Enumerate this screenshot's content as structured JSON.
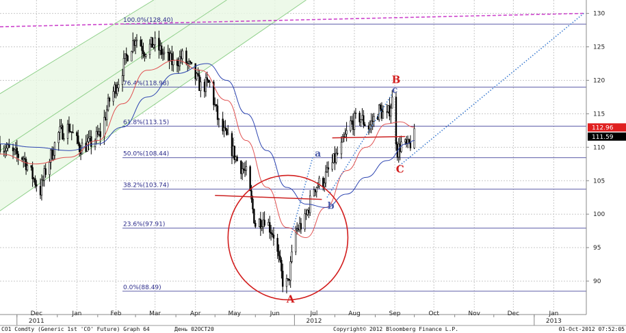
{
  "chart_data": {
    "type": "candlestick",
    "ylim": [
      85,
      132
    ],
    "x_range": [
      "2011-11-18",
      "2013-02-10"
    ],
    "y_ticks": [
      90,
      95,
      100,
      105,
      110,
      115,
      120,
      125,
      130
    ],
    "x_ticks": [
      {
        "date": "2011-12-01",
        "label": "Dec",
        "sub": "2011"
      },
      {
        "date": "2012-01-01",
        "label": "Jan",
        "sub": ""
      },
      {
        "date": "2012-02-01",
        "label": "Feb",
        "sub": ""
      },
      {
        "date": "2012-03-01",
        "label": "Mar",
        "sub": ""
      },
      {
        "date": "2012-04-01",
        "label": "Apr",
        "sub": ""
      },
      {
        "date": "2012-05-01",
        "label": "May",
        "sub": ""
      },
      {
        "date": "2012-06-01",
        "label": "Jun",
        "sub": ""
      },
      {
        "date": "2012-07-01",
        "label": "Jul",
        "sub": "2012"
      },
      {
        "date": "2012-08-01",
        "label": "Aug",
        "sub": ""
      },
      {
        "date": "2012-09-01",
        "label": "Sep",
        "sub": ""
      },
      {
        "date": "2012-10-01",
        "label": "Oct",
        "sub": ""
      },
      {
        "date": "2012-11-01",
        "label": "Nov",
        "sub": ""
      },
      {
        "date": "2012-12-01",
        "label": "Dec",
        "sub": ""
      },
      {
        "date": "2013-01-01",
        "label": "Jan",
        "sub": "2013"
      }
    ],
    "fib_levels": [
      {
        "label": "100.0%(128.40)",
        "value": 128.4
      },
      {
        "label": "76.4%(118.98)",
        "value": 118.98
      },
      {
        "label": "61.8%(113.15)",
        "value": 113.15
      },
      {
        "label": "50.0%(108.44)",
        "value": 108.44
      },
      {
        "label": "38.2%(103.74)",
        "value": 103.74
      },
      {
        "label": "23.6%(97.91)",
        "value": 97.91
      },
      {
        "label": "0.0%(88.49)",
        "value": 88.49
      }
    ],
    "close_path": [
      [
        "2011-11-18",
        110.5
      ],
      [
        "2011-11-28",
        109.0
      ],
      [
        "2011-12-06",
        108.5
      ],
      [
        "2011-12-12",
        106.0
      ],
      [
        "2011-12-19",
        103.5
      ],
      [
        "2011-12-23",
        106.5
      ],
      [
        "2012-01-02",
        112.0
      ],
      [
        "2012-01-10",
        113.0
      ],
      [
        "2012-01-18",
        110.0
      ],
      [
        "2012-01-26",
        110.5
      ],
      [
        "2012-02-03",
        112.0
      ],
      [
        "2012-02-10",
        117.0
      ],
      [
        "2012-02-17",
        120.0
      ],
      [
        "2012-02-24",
        124.0
      ],
      [
        "2012-03-01",
        126.5
      ],
      [
        "2012-03-08",
        124.5
      ],
      [
        "2012-03-15",
        125.5
      ],
      [
        "2012-03-22",
        124.0
      ],
      [
        "2012-03-30",
        122.5
      ],
      [
        "2012-04-06",
        123.5
      ],
      [
        "2012-04-13",
        121.5
      ],
      [
        "2012-04-20",
        119.0
      ],
      [
        "2012-04-27",
        119.5
      ],
      [
        "2012-05-04",
        113.5
      ],
      [
        "2012-05-11",
        111.0
      ],
      [
        "2012-05-18",
        108.0
      ],
      [
        "2012-05-25",
        106.0
      ],
      [
        "2012-06-01",
        98.5
      ],
      [
        "2012-06-08",
        99.5
      ],
      [
        "2012-06-15",
        97.0
      ],
      [
        "2012-06-22",
        90.0
      ],
      [
        "2012-06-26",
        89.5
      ],
      [
        "2012-07-02",
        97.5
      ],
      [
        "2012-07-09",
        99.0
      ],
      [
        "2012-07-16",
        104.0
      ],
      [
        "2012-07-23",
        105.0
      ],
      [
        "2012-07-30",
        107.5
      ],
      [
        "2012-08-06",
        110.0
      ],
      [
        "2012-08-13",
        113.5
      ],
      [
        "2012-08-20",
        114.5
      ],
      [
        "2012-08-27",
        113.0
      ],
      [
        "2012-09-04",
        115.5
      ],
      [
        "2012-09-10",
        114.5
      ],
      [
        "2012-09-14",
        117.0
      ],
      [
        "2012-09-18",
        109.5
      ],
      [
        "2012-09-21",
        110.5
      ],
      [
        "2012-09-26",
        110.0
      ],
      [
        "2012-10-01",
        111.6
      ]
    ],
    "moving_averages": [
      {
        "color": "#e05050",
        "points": [
          [
            "2011-11-18",
            109.0
          ],
          [
            "2011-12-15",
            107.5
          ],
          [
            "2012-01-10",
            108.5
          ],
          [
            "2012-02-01",
            111.0
          ],
          [
            "2012-02-20",
            116.5
          ],
          [
            "2012-03-10",
            121.5
          ],
          [
            "2012-04-01",
            123.0
          ],
          [
            "2012-04-20",
            121.5
          ],
          [
            "2012-05-10",
            117.0
          ],
          [
            "2012-05-25",
            111.0
          ],
          [
            "2012-06-10",
            104.0
          ],
          [
            "2012-06-25",
            98.0
          ],
          [
            "2012-07-10",
            96.5
          ],
          [
            "2012-07-25",
            101.0
          ],
          [
            "2012-08-10",
            106.5
          ],
          [
            "2012-08-25",
            110.0
          ],
          [
            "2012-09-10",
            113.5
          ],
          [
            "2012-09-20",
            113.8
          ],
          [
            "2012-10-01",
            113.0
          ]
        ]
      },
      {
        "color": "#2b43b0",
        "points": [
          [
            "2011-11-18",
            110.5
          ],
          [
            "2011-12-15",
            110.0
          ],
          [
            "2012-01-10",
            109.5
          ],
          [
            "2012-02-01",
            110.5
          ],
          [
            "2012-02-20",
            113.0
          ],
          [
            "2012-03-10",
            117.5
          ],
          [
            "2012-04-01",
            121.0
          ],
          [
            "2012-04-25",
            122.5
          ],
          [
            "2012-05-10",
            120.0
          ],
          [
            "2012-05-25",
            115.0
          ],
          [
            "2012-06-10",
            109.5
          ],
          [
            "2012-06-25",
            104.0
          ],
          [
            "2012-07-10",
            101.5
          ],
          [
            "2012-07-25",
            101.0
          ],
          [
            "2012-08-10",
            103.0
          ],
          [
            "2012-08-25",
            105.5
          ],
          [
            "2012-09-10",
            108.0
          ],
          [
            "2012-09-25",
            110.5
          ],
          [
            "2012-10-01",
            111.0
          ]
        ]
      }
    ],
    "trend_lines": [
      {
        "color": "#cc44cc",
        "style": "dashed",
        "from": [
          "2011-11-18",
          128.0
        ],
        "to": [
          "2013-02-08",
          130.0
        ]
      },
      {
        "color": "#3a7ad0",
        "style": "dotted",
        "from": [
          "2012-09-18",
          107.0
        ],
        "to": [
          "2013-02-08",
          130.0
        ]
      },
      {
        "color": "#3a7ad0",
        "style": "dotted",
        "from": [
          "2012-06-28",
          96.5
        ],
        "to": [
          "2012-07-15",
          108.5
        ]
      },
      {
        "color": "#3a7ad0",
        "style": "dotted",
        "from": [
          "2012-07-26",
          102.5
        ],
        "to": [
          "2012-09-14",
          118.0
        ]
      },
      {
        "color": "#cc2020",
        "style": "solid",
        "from": [
          "2012-05-01",
          102.8
        ],
        "to": [
          "2012-07-22",
          102.2
        ]
      },
      {
        "color": "#cc2020",
        "style": "solid",
        "from": [
          "2012-07-30",
          111.4
        ],
        "to": [
          "2012-09-24",
          111.6
        ]
      }
    ],
    "channel_lines": [
      {
        "from": [
          "2011-11-18",
          100.5
        ],
        "to": [
          "2012-07-10",
          132.0
        ]
      },
      {
        "from": [
          "2011-11-18",
          109.5
        ],
        "to": [
          "2012-05-10",
          132.0
        ]
      },
      {
        "from": [
          "2011-11-18",
          118.0
        ],
        "to": [
          "2012-03-15",
          132.0
        ]
      }
    ],
    "circle": {
      "center": [
        "2012-06-26",
        96.5
      ],
      "rx_days": 46,
      "ry_value": 9.3
    },
    "wave_labels": [
      {
        "text": "A",
        "date": "2012-06-28",
        "value": 86.8,
        "color": "red"
      },
      {
        "text": "B",
        "date": "2012-09-17",
        "value": 119.6,
        "color": "red"
      },
      {
        "text": "C",
        "date": "2012-09-20",
        "value": 106.2,
        "color": "red"
      },
      {
        "text": "a",
        "date": "2012-07-19",
        "value": 108.6,
        "color": "blue"
      },
      {
        "text": "b",
        "date": "2012-07-29",
        "value": 100.8,
        "color": "blue"
      },
      {
        "text": "c",
        "date": "2012-09-16",
        "value": 118.1,
        "color": "blue"
      }
    ],
    "price_tags": [
      {
        "text": "112.96",
        "value": 112.96,
        "bg": "#e02020",
        "fg": "#ffffff"
      },
      {
        "text": "111.59",
        "value": 111.59,
        "bg": "#000000",
        "fg": "#ffffff"
      }
    ]
  },
  "footer": {
    "left": "CO1 Comdty (Generic 1st 'CO' Future) Graph 64",
    "middle": "День 02OCT20",
    "copyright": "Copyright© 2012 Bloomberg Finance L.P.",
    "timestamp": "01-Oct-2012 07:52:05"
  }
}
